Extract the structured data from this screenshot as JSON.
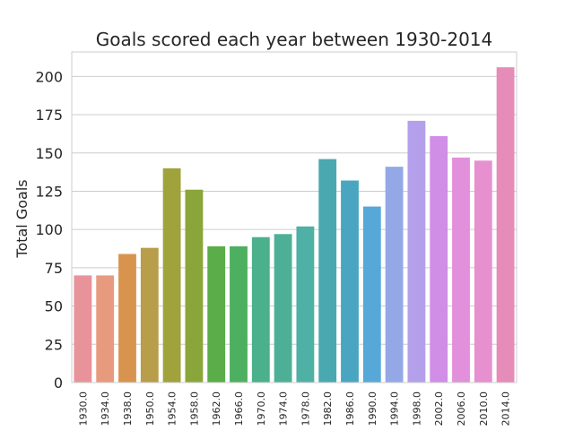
{
  "chart_data": {
    "type": "bar",
    "title": "Goals scored each year between 1930-2014",
    "xlabel": "",
    "ylabel": "Total Goals",
    "categories": [
      "1930.0",
      "1934.0",
      "1938.0",
      "1950.0",
      "1954.0",
      "1958.0",
      "1962.0",
      "1966.0",
      "1970.0",
      "1974.0",
      "1978.0",
      "1982.0",
      "1986.0",
      "1990.0",
      "1994.0",
      "1998.0",
      "2002.0",
      "2006.0",
      "2010.0",
      "2014.0"
    ],
    "values": [
      70,
      70,
      84,
      88,
      140,
      126,
      89,
      89,
      95,
      97,
      102,
      146,
      132,
      115,
      141,
      171,
      161,
      147,
      145,
      206
    ],
    "ylim": [
      0,
      216
    ],
    "yticks": [
      "0",
      "25",
      "50",
      "75",
      "100",
      "125",
      "150",
      "175",
      "200"
    ],
    "grid": "horizontal",
    "colors": [
      "#e8939a",
      "#e89a7e",
      "#d8944e",
      "#b89d4a",
      "#a0a23c",
      "#8aa63a",
      "#5aad48",
      "#4db060",
      "#4bb08c",
      "#4db096",
      "#4fb0a6",
      "#4aa8b0",
      "#4aa6c0",
      "#56a8d8",
      "#94a8e8",
      "#b4a0ea",
      "#d08ee6",
      "#e290dc",
      "#e690d0",
      "#e68cb8"
    ]
  }
}
